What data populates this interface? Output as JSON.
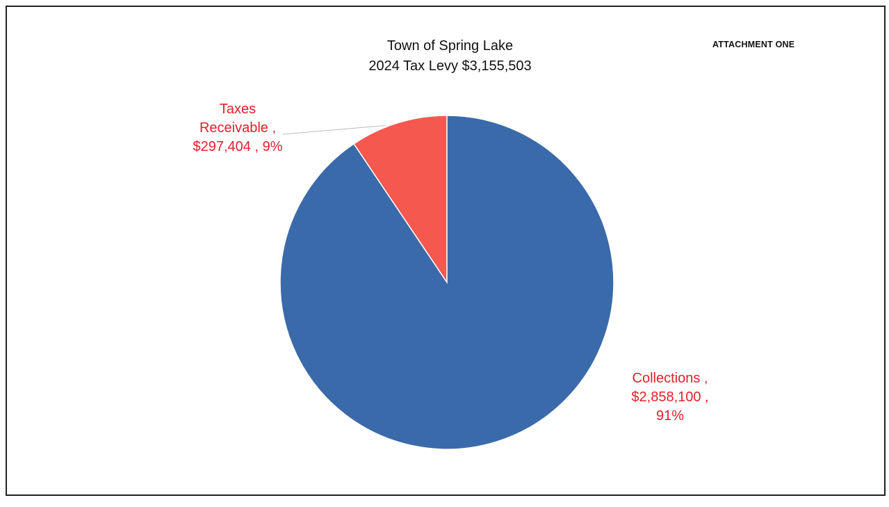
{
  "header": {
    "attachment": "ATTACHMENT ONE"
  },
  "chart_data": {
    "type": "pie",
    "title": "Town of Spring Lake",
    "subtitle": "2024 Tax Levy $3,155,503",
    "slices": [
      {
        "label": "Taxes Receivable",
        "value": 297404,
        "percent": 9,
        "color": "#f4584f",
        "label_lines": [
          "Taxes",
          "Receivable ,",
          "$297,404 , 9%"
        ]
      },
      {
        "label": "Collections",
        "value": 2858100,
        "percent": 91,
        "color": "#3a6aaa",
        "label_lines": [
          "Collections ,",
          "$2,858,100 ,",
          "91%"
        ]
      }
    ],
    "start": "12 o'clock",
    "direction": "counter-clockwise",
    "legend": "none (data labels)",
    "label_color": "#e0202a"
  }
}
